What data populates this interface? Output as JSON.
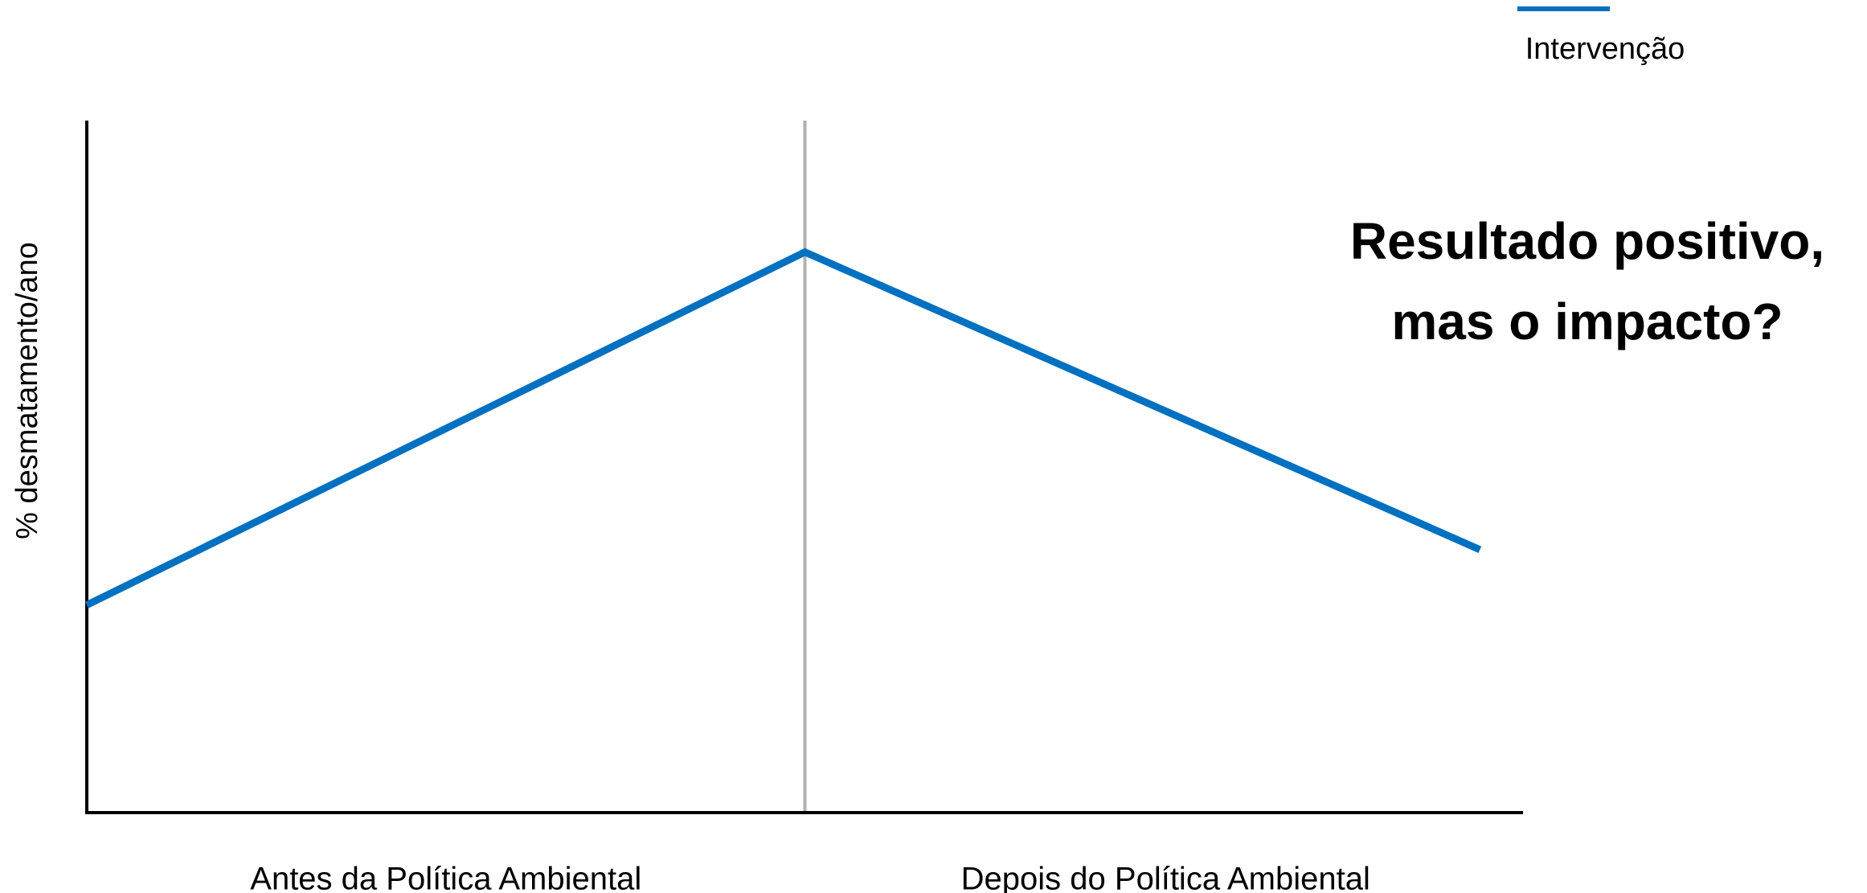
{
  "chart_data": {
    "type": "line",
    "y_label": "% desmatamento/ano",
    "x_labels": [
      "Antes da Política Ambiental",
      "Depois do Política Ambiental"
    ],
    "x": [
      0,
      50,
      97
    ],
    "series": [
      {
        "name": "Intervenção",
        "color": "#0070c0",
        "values": [
          30,
          81,
          38
        ]
      }
    ],
    "xlim": [
      0,
      100
    ],
    "ylim": [
      0,
      100
    ],
    "vline": 50,
    "annotation": [
      "Resultado positivo,",
      "mas o impacto?"
    ],
    "legend": "top-right",
    "grid": false
  }
}
